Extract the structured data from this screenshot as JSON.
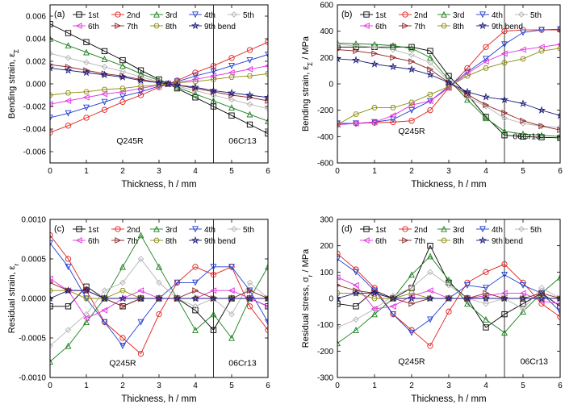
{
  "series_names": [
    "1st",
    "2nd",
    "3rd",
    "4th",
    "5th",
    "6th",
    "7th",
    "8th",
    "9th bend"
  ],
  "series_colors": [
    "#000000",
    "#e0201b",
    "#1a7f1a",
    "#1f3fcf",
    "#b4b4b4",
    "#e030e0",
    "#8b2020",
    "#8c8c10",
    "#1a1a7a"
  ],
  "series_markers": [
    "square",
    "circle",
    "triangle-up",
    "triangle-down",
    "diamond",
    "triangle-left",
    "triangle-right",
    "hexagon",
    "star"
  ],
  "chart_data": [
    {
      "type": "line",
      "panel_label": "(a)",
      "xlabel": "Thickness, h / mm",
      "ylabel": "Bending strain, ε",
      "ylabel_sub": "Σ",
      "xlim": [
        0,
        6
      ],
      "ylim": [
        -0.007,
        0.007
      ],
      "xticks": [
        0,
        1,
        2,
        3,
        4,
        5,
        6
      ],
      "xticklabels": [
        "0",
        "1",
        "2",
        "3",
        "4",
        "5",
        "6"
      ],
      "yticks": [
        -0.006,
        -0.004,
        -0.002,
        0,
        0.002,
        0.004,
        0.006
      ],
      "yticklabels": [
        "-0.006",
        "-0.004",
        "-0.002",
        "0.000",
        "0.002",
        "0.004",
        "0.006"
      ],
      "interface_x": 4.5,
      "region_labels": [
        {
          "text": "Q245R",
          "x": 2.2,
          "y": -0.0053
        },
        {
          "text": "06Cr13",
          "x": 5.3,
          "y": -0.0053
        }
      ],
      "x": [
        0,
        0.5,
        1,
        1.5,
        2,
        2.5,
        3,
        3.25,
        3.5,
        4,
        4.5,
        5,
        5.5,
        6
      ],
      "series": [
        {
          "name": "1st",
          "values": [
            0.0053,
            0.0045,
            0.0037,
            0.0029,
            0.0021,
            0.0012,
            0.0004,
            0.0,
            -0.0004,
            -0.0012,
            -0.002,
            -0.0028,
            -0.0036,
            -0.0044
          ]
        },
        {
          "name": "2nd",
          "values": [
            -0.0043,
            -0.0037,
            -0.003,
            -0.0023,
            -0.0016,
            -0.001,
            -0.0003,
            0.0,
            0.0003,
            0.001,
            0.0016,
            0.0023,
            0.003,
            0.0037
          ]
        },
        {
          "name": "3rd",
          "values": [
            0.004,
            0.0034,
            0.0028,
            0.0022,
            0.0016,
            0.0009,
            0.0003,
            0.0,
            -0.0003,
            -0.0009,
            -0.0015,
            -0.0021,
            -0.0027,
            -0.0033
          ]
        },
        {
          "name": "4th",
          "values": [
            -0.003,
            -0.0026,
            -0.0021,
            -0.0016,
            -0.0011,
            -0.0007,
            -0.0002,
            0.0,
            0.0002,
            0.0007,
            0.0011,
            0.0016,
            0.0021,
            0.0026
          ]
        },
        {
          "name": "5th",
          "values": [
            0.0027,
            0.0023,
            0.0019,
            0.0015,
            0.0011,
            0.0006,
            0.0002,
            0.0,
            -0.0002,
            -0.0006,
            -0.001,
            -0.0014,
            -0.0018,
            -0.0022
          ]
        },
        {
          "name": "6th",
          "values": [
            -0.0018,
            -0.0015,
            -0.0012,
            -0.0009,
            -0.0007,
            -0.0004,
            -0.0001,
            0.0,
            0.0001,
            0.0004,
            0.0007,
            0.001,
            0.0013,
            0.0016
          ]
        },
        {
          "name": "7th",
          "values": [
            0.0017,
            0.0015,
            0.0012,
            0.0009,
            0.0007,
            0.0004,
            0.0001,
            0.0,
            -0.0001,
            -0.0004,
            -0.0007,
            -0.001,
            -0.0012,
            -0.0015
          ]
        },
        {
          "name": "8th",
          "values": [
            -0.001,
            -0.0008,
            -0.0007,
            -0.0005,
            -0.0004,
            -0.0002,
            -0.0001,
            0.0,
            0.0001,
            0.0002,
            0.0004,
            0.0006,
            0.0007,
            0.0009
          ]
        },
        {
          "name": "9th bend",
          "values": [
            0.0014,
            0.0012,
            0.001,
            0.0008,
            0.0006,
            0.0003,
            0.0001,
            0.0,
            -0.0001,
            -0.0003,
            -0.0006,
            -0.0008,
            -0.001,
            -0.0012
          ]
        }
      ]
    },
    {
      "type": "line",
      "panel_label": "(b)",
      "xlabel": "Thickness, h / mm",
      "ylabel": "Bending strain, ε",
      "ylabel_sub": "Σ",
      "ylabel_unit": " / MPa",
      "xlim": [
        0,
        6
      ],
      "ylim": [
        -600,
        600
      ],
      "xticks": [
        0,
        1,
        2,
        3,
        4,
        5,
        6
      ],
      "xticklabels": [
        "0",
        "1",
        "2",
        "3",
        "4",
        "5",
        "6"
      ],
      "yticks": [
        -600,
        -400,
        -200,
        0,
        200,
        400,
        600
      ],
      "yticklabels": [
        "-600",
        "-400",
        "-200",
        "0",
        "200",
        "400",
        "600"
      ],
      "interface_x": 4.5,
      "region_labels": [
        {
          "text": "Q245R",
          "x": 2.0,
          "y": -380
        },
        {
          "text": "06Cr13",
          "x": 5.1,
          "y": -420
        }
      ],
      "x": [
        0,
        0.5,
        1,
        1.5,
        2,
        2.5,
        3,
        3.5,
        4,
        4.5,
        5,
        5.5,
        6
      ],
      "series": [
        {
          "name": "1st",
          "values": [
            280,
            280,
            280,
            280,
            280,
            250,
            60,
            -80,
            -250,
            -390,
            -400,
            -405,
            -410
          ]
        },
        {
          "name": "2nd",
          "values": [
            -300,
            -300,
            -295,
            -290,
            -280,
            -200,
            -30,
            120,
            280,
            400,
            410,
            410,
            410
          ]
        },
        {
          "name": "3rd",
          "values": [
            310,
            305,
            300,
            290,
            270,
            200,
            30,
            -120,
            -260,
            -360,
            -380,
            -390,
            -400
          ]
        },
        {
          "name": "4th",
          "values": [
            -300,
            -300,
            -290,
            -270,
            -200,
            -130,
            -20,
            90,
            190,
            300,
            390,
            410,
            415
          ]
        },
        {
          "name": "5th",
          "values": [
            300,
            290,
            280,
            260,
            220,
            160,
            20,
            -100,
            -170,
            -260,
            -300,
            -320,
            -330
          ]
        },
        {
          "name": "6th",
          "values": [
            -310,
            -300,
            -290,
            -240,
            -160,
            -130,
            -30,
            80,
            170,
            230,
            260,
            280,
            300
          ]
        },
        {
          "name": "7th",
          "values": [
            260,
            250,
            230,
            200,
            170,
            110,
            10,
            -80,
            -160,
            -220,
            -280,
            -320,
            -350
          ]
        },
        {
          "name": "8th",
          "values": [
            -310,
            -230,
            -180,
            -180,
            -140,
            -80,
            -20,
            60,
            120,
            160,
            190,
            250,
            270
          ]
        },
        {
          "name": "9th bend",
          "values": [
            190,
            180,
            150,
            130,
            110,
            70,
            10,
            -60,
            -100,
            -120,
            -150,
            -200,
            -240
          ]
        }
      ]
    },
    {
      "type": "line",
      "panel_label": "(c)",
      "xlabel": "Thickness, h / mm",
      "ylabel": "Residual strain, ε",
      "ylabel_sub": "r",
      "xlim": [
        0,
        6
      ],
      "ylim": [
        -0.001,
        0.001
      ],
      "xticks": [
        0,
        1,
        2,
        3,
        4,
        5,
        6
      ],
      "xticklabels": [
        "0",
        "1",
        "2",
        "3",
        "4",
        "5",
        "6"
      ],
      "yticks": [
        -0.001,
        -0.0005,
        0,
        0.0005,
        0.001
      ],
      "yticklabels": [
        "-0.0010",
        "-0.0005",
        "0.0000",
        "0.0005",
        "0.0010"
      ],
      "interface_x": 4.5,
      "region_labels": [
        {
          "text": "Q245R",
          "x": 2.0,
          "y": -0.00085
        },
        {
          "text": "06Cr13",
          "x": 5.3,
          "y": -0.00085
        }
      ],
      "x": [
        0,
        0.5,
        1,
        1.5,
        2,
        2.5,
        3,
        3.5,
        4,
        4.5,
        5,
        5.5,
        6
      ],
      "series": [
        {
          "name": "1st",
          "values": [
            -0.0001,
            -0.0001,
            0.00015,
            0.0,
            -0.0001,
            0.0,
            0.0,
            0.0,
            -0.00015,
            -0.0004,
            0.0,
            0.0,
            -0.0001
          ]
        },
        {
          "name": "2nd",
          "values": [
            0.0008,
            0.0005,
            0.0001,
            -0.0003,
            -0.0005,
            -0.0007,
            -0.0002,
            0.0002,
            0.0004,
            0.0003,
            0.0004,
            -0.0001,
            -0.0004
          ]
        },
        {
          "name": "3rd",
          "values": [
            -0.0008,
            -0.0006,
            -0.0003,
            0.0,
            0.0004,
            0.0008,
            0.0004,
            0.0,
            -0.0004,
            -0.0002,
            -0.0005,
            0.0,
            0.0004
          ]
        },
        {
          "name": "4th",
          "values": [
            0.0007,
            0.0004,
            0.0,
            -0.0003,
            -0.0006,
            -0.0003,
            0.0,
            0.0002,
            0.0002,
            0.0004,
            0.0004,
            0.0001,
            -0.0003
          ]
        },
        {
          "name": "5th",
          "values": [
            -0.0006,
            -0.0004,
            -0.0002,
            0.0001,
            0.0002,
            0.0005,
            0.0002,
            0.0,
            -0.0001,
            0.0,
            -0.0002,
            0.0002,
            0.0
          ]
        },
        {
          "name": "6th",
          "values": [
            0.00025,
            0.0001,
            -0.00025,
            -0.00015,
            0.0,
            0.0001,
            0.0,
            0.0,
            0.0,
            0.0001,
            0.0001,
            0.0,
            -0.0001
          ]
        },
        {
          "name": "7th",
          "values": [
            0.0002,
            0.0001,
            0.0001,
            0.0,
            -0.0001,
            0.0,
            0.0,
            0.0,
            0.0001,
            0.0,
            0.0,
            0.0001,
            0.0
          ]
        },
        {
          "name": "8th",
          "values": [
            0.0001,
            0.0001,
            0.0,
            0.0,
            0.0001,
            0.0,
            0.0,
            0.0,
            0.0,
            0.0,
            0.0,
            0.0,
            0.0
          ]
        },
        {
          "name": "9th bend",
          "values": [
            0.0,
            0.0001,
            0.0001,
            0.0,
            0.0,
            0.0,
            0.0,
            0.0,
            0.0,
            0.0,
            0.0,
            0.0,
            0.0
          ]
        }
      ]
    },
    {
      "type": "line",
      "panel_label": "(d)",
      "xlabel": "Thickness, h / mm",
      "ylabel": "Residual stress, σ",
      "ylabel_sub": "r",
      "ylabel_unit": " / MPa",
      "xlim": [
        0,
        6
      ],
      "ylim": [
        -300,
        300
      ],
      "xticks": [
        0,
        1,
        2,
        3,
        4,
        5,
        6
      ],
      "xticklabels": [
        "0",
        "1",
        "2",
        "3",
        "4",
        "5",
        "6"
      ],
      "yticks": [
        -300,
        -200,
        -100,
        0,
        100,
        200,
        300
      ],
      "yticklabels": [
        "-300",
        "-200",
        "-100",
        "0",
        "100",
        "200",
        "300"
      ],
      "interface_x": 4.5,
      "region_labels": [
        {
          "text": "Q245R",
          "x": 2.0,
          "y": -250
        },
        {
          "text": "06Cr13",
          "x": 5.3,
          "y": -250
        }
      ],
      "x": [
        0,
        0.5,
        1,
        1.5,
        2,
        2.5,
        3,
        3.5,
        4,
        4.5,
        5,
        5.5,
        6
      ],
      "series": [
        {
          "name": "1st",
          "values": [
            -20,
            -30,
            30,
            0,
            40,
            200,
            60,
            0,
            -110,
            -60,
            -20,
            20,
            -30
          ]
        },
        {
          "name": "2nd",
          "values": [
            170,
            110,
            40,
            -60,
            -120,
            -180,
            -50,
            60,
            100,
            130,
            60,
            -20,
            -70
          ]
        },
        {
          "name": "3rd",
          "values": [
            -170,
            -120,
            -60,
            0,
            90,
            160,
            70,
            -20,
            -80,
            -130,
            -50,
            20,
            80
          ]
        },
        {
          "name": "4th",
          "values": [
            150,
            100,
            30,
            -60,
            -130,
            -80,
            0,
            50,
            40,
            90,
            50,
            20,
            -50
          ]
        },
        {
          "name": "5th",
          "values": [
            -110,
            -80,
            -40,
            10,
            40,
            100,
            50,
            0,
            -20,
            0,
            -40,
            40,
            0
          ]
        },
        {
          "name": "6th",
          "values": [
            80,
            50,
            -40,
            -30,
            10,
            30,
            0,
            0,
            10,
            20,
            20,
            -10,
            -20
          ]
        },
        {
          "name": "7th",
          "values": [
            50,
            30,
            20,
            0,
            -20,
            0,
            0,
            0,
            20,
            0,
            0,
            20,
            0
          ]
        },
        {
          "name": "8th",
          "values": [
            20,
            20,
            0,
            0,
            20,
            0,
            0,
            0,
            0,
            0,
            0,
            0,
            0
          ]
        },
        {
          "name": "9th bend",
          "values": [
            0,
            20,
            20,
            0,
            0,
            0,
            0,
            0,
            0,
            0,
            0,
            0,
            0
          ]
        }
      ]
    }
  ]
}
